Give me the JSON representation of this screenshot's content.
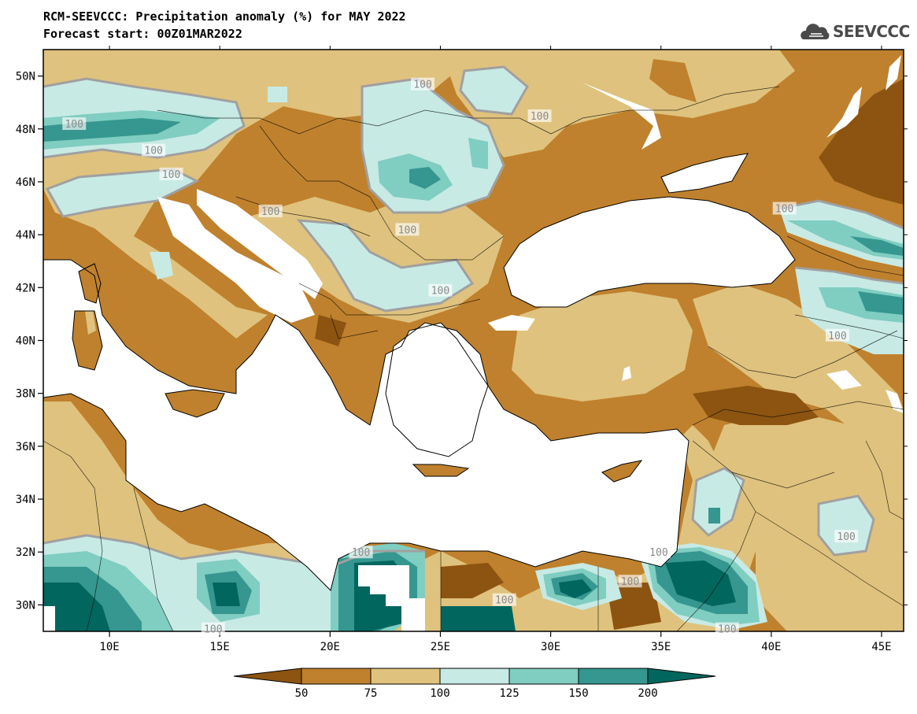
{
  "header": {
    "title_line1": "RCM-SEEVCCC: Precipitation anomaly (%) for MAY 2022",
    "title_line2": "Forecast start: 00Z01MAR2022",
    "logo_text": "SEEVCCC",
    "logo_icon": "cloud-logo-icon"
  },
  "map": {
    "projection": "lat-lon",
    "lon_range": [
      7,
      46
    ],
    "lat_range": [
      29,
      51
    ],
    "lon_ticks": [
      "10E",
      "15E",
      "20E",
      "25E",
      "30E",
      "35E",
      "40E",
      "45E"
    ],
    "lat_ticks": [
      "30N",
      "32N",
      "34N",
      "36N",
      "38N",
      "40N",
      "42N",
      "44N",
      "46N",
      "48N",
      "50N"
    ],
    "contour_labels": [
      {
        "text": "100",
        "lon": 24.2,
        "lat": 49.7
      },
      {
        "text": "100",
        "lon": 8.4,
        "lat": 48.2
      },
      {
        "text": "100",
        "lon": 29.5,
        "lat": 48.5
      },
      {
        "text": "100",
        "lon": 12.0,
        "lat": 47.2
      },
      {
        "text": "100",
        "lon": 12.8,
        "lat": 46.3
      },
      {
        "text": "100",
        "lon": 17.3,
        "lat": 44.9
      },
      {
        "text": "100",
        "lon": 23.5,
        "lat": 44.2
      },
      {
        "text": "100",
        "lon": 25.0,
        "lat": 41.9
      },
      {
        "text": "100",
        "lon": 40.6,
        "lat": 45.0
      },
      {
        "text": "100",
        "lon": 43.0,
        "lat": 40.2
      },
      {
        "text": "100",
        "lon": 43.4,
        "lat": 32.6
      },
      {
        "text": "100",
        "lon": 21.4,
        "lat": 32.0
      },
      {
        "text": "100",
        "lon": 34.9,
        "lat": 32.0
      },
      {
        "text": "100",
        "lon": 33.6,
        "lat": 30.9
      },
      {
        "text": "100",
        "lon": 27.9,
        "lat": 30.2
      },
      {
        "text": "100",
        "lon": 14.7,
        "lat": 29.1
      },
      {
        "text": "100",
        "lon": 38.0,
        "lat": 29.1
      }
    ]
  },
  "legend": {
    "labels": [
      "50",
      "75",
      "100",
      "125",
      "150",
      "200"
    ],
    "colors": [
      "#8c5410",
      "#bf812d",
      "#dfc27d",
      "#c7eae5",
      "#80cdc1",
      "#35978f",
      "#01665e"
    ]
  },
  "colors": {
    "sea": "#ffffff",
    "gridline": "#000000"
  }
}
